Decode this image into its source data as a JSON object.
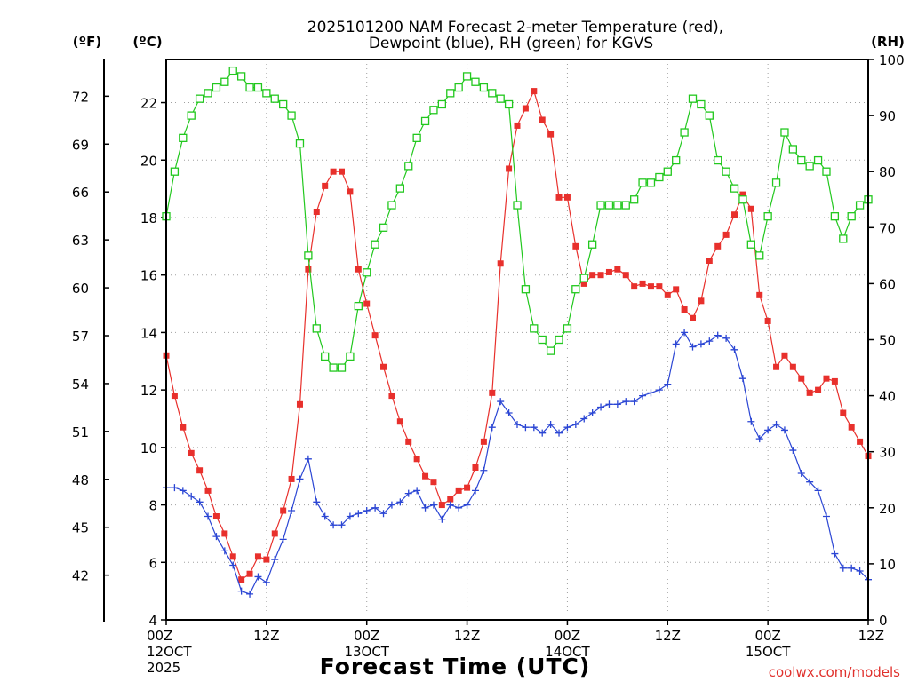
{
  "chart_data": {
    "type": "line",
    "title_line1": "2025101200 NAM Forecast 2-meter Temperature (red),",
    "title_line2": "Dewpoint (blue), RH (green) for KGVS",
    "xlabel": "Forecast Time (UTC)",
    "credit": "coolwx.com/models",
    "unit_left_outer": "(ºF)",
    "unit_left_inner": "(ºC)",
    "unit_right": "(RH)",
    "x_range_hours": [
      0,
      84
    ],
    "y_left_c_range": [
      4,
      23.5
    ],
    "y_right_rh_range": [
      0,
      100
    ],
    "x_ticks": [
      {
        "h": 0,
        "lines": [
          "00Z",
          "12OCT",
          "2025"
        ]
      },
      {
        "h": 12,
        "lines": [
          "12Z"
        ]
      },
      {
        "h": 24,
        "lines": [
          "00Z",
          "13OCT"
        ]
      },
      {
        "h": 36,
        "lines": [
          "12Z"
        ]
      },
      {
        "h": 48,
        "lines": [
          "00Z",
          "14OCT"
        ]
      },
      {
        "h": 60,
        "lines": [
          "12Z"
        ]
      },
      {
        "h": 72,
        "lines": [
          "00Z",
          "15OCT"
        ]
      },
      {
        "h": 84,
        "lines": [
          "12Z"
        ]
      }
    ],
    "y_ticks_c": [
      "4",
      "6",
      "8",
      "10",
      "12",
      "14",
      "16",
      "18",
      "20",
      "22"
    ],
    "y_ticks_f": [
      "42",
      "45",
      "48",
      "51",
      "54",
      "57",
      "60",
      "63",
      "66",
      "69",
      "72"
    ],
    "y_ticks_rh": [
      "0",
      "10",
      "20",
      "30",
      "40",
      "50",
      "60",
      "70",
      "80",
      "90",
      "100"
    ],
    "x_hours": [
      0,
      1,
      2,
      3,
      4,
      5,
      6,
      7,
      8,
      9,
      10,
      11,
      12,
      13,
      14,
      15,
      16,
      17,
      18,
      19,
      20,
      21,
      22,
      23,
      24,
      25,
      26,
      27,
      28,
      29,
      30,
      31,
      32,
      33,
      34,
      35,
      36,
      37,
      38,
      39,
      40,
      41,
      42,
      43,
      44,
      45,
      46,
      47,
      48,
      49,
      50,
      51,
      52,
      53,
      54,
      55,
      56,
      57,
      58,
      59,
      60,
      61,
      62,
      63,
      64,
      65,
      66,
      67,
      68,
      69,
      70,
      71,
      72,
      73,
      74,
      75,
      76,
      77,
      78,
      79,
      80,
      81,
      82,
      83,
      84
    ],
    "series": [
      {
        "name": "Temperature (red)",
        "axis": "C",
        "color": "#e8302c",
        "marker": "square-filled",
        "values": [
          13.2,
          11.8,
          10.7,
          9.8,
          9.2,
          8.5,
          7.6,
          7.0,
          6.2,
          5.4,
          5.6,
          6.2,
          6.1,
          7.0,
          7.8,
          8.9,
          11.5,
          16.2,
          18.2,
          19.1,
          19.6,
          19.6,
          18.9,
          16.2,
          15.0,
          13.9,
          12.8,
          11.8,
          10.9,
          10.2,
          9.6,
          9.0,
          8.8,
          8.0,
          8.2,
          8.5,
          8.6,
          9.3,
          10.2,
          11.9,
          16.4,
          19.7,
          21.2,
          21.8,
          22.4,
          21.4,
          20.9,
          18.7,
          18.7,
          17.0,
          15.7,
          16.0,
          16.0,
          16.1,
          16.2,
          16.0,
          15.6,
          15.7,
          15.6,
          15.6,
          15.3,
          15.5,
          14.8,
          14.5,
          15.1,
          16.5,
          17.0,
          17.4,
          18.1,
          18.8,
          18.3,
          15.3,
          14.4,
          12.8,
          13.2,
          12.8,
          12.4,
          11.9,
          12.0,
          12.4,
          12.3,
          11.2,
          10.7,
          10.2,
          9.7
        ]
      },
      {
        "name": "Dewpoint (blue)",
        "axis": "C",
        "color": "#2b46d4",
        "marker": "plus",
        "values": [
          8.6,
          8.6,
          8.5,
          8.3,
          8.1,
          7.6,
          6.9,
          6.4,
          5.9,
          5.0,
          4.9,
          5.5,
          5.3,
          6.1,
          6.8,
          7.8,
          8.9,
          9.6,
          8.1,
          7.6,
          7.3,
          7.3,
          7.6,
          7.7,
          7.8,
          7.9,
          7.7,
          8.0,
          8.1,
          8.4,
          8.5,
          7.9,
          8.0,
          7.5,
          8.0,
          7.9,
          8.0,
          8.5,
          9.2,
          10.7,
          11.6,
          11.2,
          10.8,
          10.7,
          10.7,
          10.5,
          10.8,
          10.5,
          10.7,
          10.8,
          11.0,
          11.2,
          11.4,
          11.5,
          11.5,
          11.6,
          11.6,
          11.8,
          11.9,
          12.0,
          12.2,
          13.6,
          14.0,
          13.5,
          13.6,
          13.7,
          13.9,
          13.8,
          13.4,
          12.4,
          10.9,
          10.3,
          10.6,
          10.8,
          10.6,
          9.9,
          9.1,
          8.8,
          8.5,
          7.6,
          6.3,
          5.8,
          5.8,
          5.7,
          5.4
        ]
      },
      {
        "name": "RH (green)",
        "axis": "RH",
        "color": "#22c81e",
        "marker": "square-open",
        "values": [
          72,
          80,
          86,
          90,
          93,
          94,
          95,
          96,
          98,
          97,
          95,
          95,
          94,
          93,
          92,
          90,
          85,
          65,
          52,
          47,
          45,
          45,
          47,
          56,
          62,
          67,
          70,
          74,
          77,
          81,
          86,
          89,
          91,
          92,
          94,
          95,
          97,
          96,
          95,
          94,
          93,
          92,
          74,
          59,
          52,
          50,
          48,
          50,
          52,
          59,
          61,
          67,
          74,
          74,
          74,
          74,
          75,
          78,
          78,
          79,
          80,
          82,
          87,
          93,
          92,
          90,
          82,
          80,
          77,
          75,
          67,
          65,
          72,
          78,
          87,
          84,
          82,
          81,
          82,
          80,
          72,
          68,
          72,
          74,
          75
        ]
      }
    ]
  }
}
